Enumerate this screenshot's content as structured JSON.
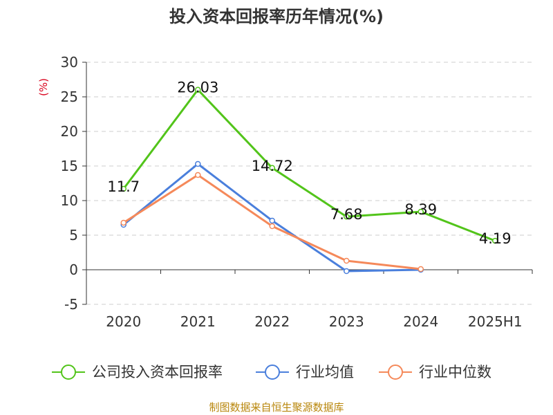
{
  "chart_data": {
    "type": "line",
    "title": "投入资本回报率历年情况(%)",
    "ylabel": "(%)",
    "categories": [
      "2020",
      "2021",
      "2022",
      "2023",
      "2024",
      "2025H1"
    ],
    "ylim": [
      -5,
      30
    ],
    "yticks": [
      30,
      25,
      20,
      15,
      10,
      5,
      0,
      -5
    ],
    "grid": true,
    "legend_position": "bottom",
    "series": [
      {
        "name": "公司投入资本回报率",
        "color": "#52c41a",
        "values": [
          11.7,
          26.03,
          14.72,
          7.68,
          8.39,
          4.19
        ],
        "labels": [
          "11.7",
          "26.03",
          "14.72",
          "7.68",
          "8.39",
          "4.19"
        ]
      },
      {
        "name": "行业均值",
        "color": "#4a7fdc",
        "values": [
          6.5,
          15.3,
          7.1,
          -0.2,
          0.0,
          null
        ]
      },
      {
        "name": "行业中位数",
        "color": "#f5895a",
        "values": [
          6.8,
          13.7,
          6.3,
          1.3,
          0.1,
          null
        ]
      }
    ]
  },
  "source": "制图数据来自恒生聚源数据库"
}
